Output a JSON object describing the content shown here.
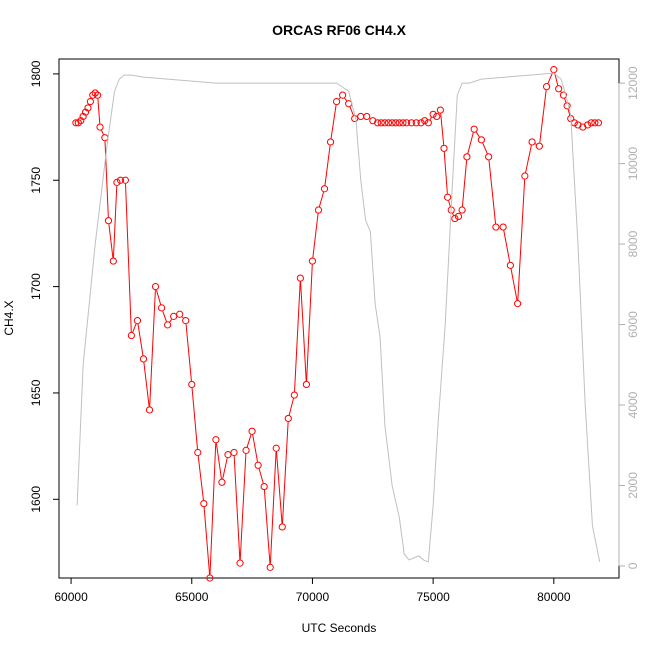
{
  "chart_data": {
    "type": "line",
    "title": "ORCAS RF06 CH4.X",
    "xlabel": "UTC Seconds",
    "ylabel": "CH4.X",
    "y2label": "",
    "xlim": [
      59500,
      82700
    ],
    "ylim": [
      1563,
      1807
    ],
    "y2lim": [
      -300,
      12600
    ],
    "x_ticks": [
      60000,
      65000,
      70000,
      75000,
      80000
    ],
    "y_ticks": [
      1600,
      1650,
      1700,
      1750,
      1800
    ],
    "y2_ticks": [
      0,
      2000,
      4000,
      6000,
      8000,
      10000,
      12000
    ],
    "colors": {
      "ch4": "#ff0000",
      "altitude": "#c0c0c0"
    },
    "series": [
      {
        "role": "ch4",
        "axis": "left",
        "color": "#ff0000",
        "marker": "open-circle",
        "x": [
          60200,
          60300,
          60400,
          60500,
          60600,
          60700,
          60800,
          60900,
          61000,
          61100,
          61200,
          61400,
          61550,
          61750,
          61900,
          62050,
          62250,
          62500,
          62750,
          63000,
          63250,
          63500,
          63750,
          64000,
          64250,
          64500,
          64750,
          65000,
          65250,
          65500,
          65750,
          66000,
          66250,
          66500,
          66750,
          67000,
          67250,
          67500,
          67750,
          68000,
          68250,
          68500,
          68750,
          69000,
          69250,
          69500,
          69750,
          70000,
          70250,
          70500,
          70750,
          71000,
          71250,
          71500,
          71750,
          72000,
          72250,
          72500,
          72700,
          72850,
          73000,
          73150,
          73300,
          73450,
          73600,
          73750,
          73900,
          74100,
          74300,
          74500,
          74650,
          74800,
          75000,
          75150,
          75300,
          75450,
          75600,
          75750,
          75900,
          76050,
          76200,
          76400,
          76700,
          77000,
          77300,
          77600,
          77900,
          78200,
          78500,
          78800,
          79100,
          79400,
          79700,
          80000,
          80200,
          80400,
          80550,
          80700,
          80850,
          81000,
          81200,
          81400,
          81550,
          81700,
          81850
        ],
        "y": [
          1777,
          1777,
          1778,
          1780,
          1782,
          1784,
          1787,
          1790,
          1791,
          1790,
          1775,
          1770,
          1731,
          1712,
          1749,
          1750,
          1750,
          1677,
          1684,
          1666,
          1642,
          1700,
          1690,
          1682,
          1686,
          1687,
          1684,
          1654,
          1622,
          1598,
          1563,
          1628,
          1608,
          1621,
          1622,
          1570,
          1623,
          1632,
          1616,
          1606,
          1568,
          1624,
          1587,
          1638,
          1649,
          1704,
          1654,
          1712,
          1736,
          1746,
          1768,
          1787,
          1790,
          1786,
          1779,
          1780,
          1780,
          1778,
          1777,
          1777,
          1777,
          1777,
          1777,
          1777,
          1777,
          1777,
          1777,
          1777,
          1777,
          1777,
          1778,
          1777,
          1781,
          1780,
          1783,
          1765,
          1742,
          1736,
          1732,
          1733,
          1736,
          1761,
          1774,
          1769,
          1761,
          1728,
          1728,
          1710,
          1692,
          1752,
          1768,
          1766,
          1794,
          1802,
          1793,
          1790,
          1785,
          1779,
          1777,
          1776,
          1775,
          1776,
          1777,
          1777,
          1777
        ]
      },
      {
        "role": "altitude",
        "axis": "right",
        "color": "#c0c0c0",
        "marker": "none",
        "x": [
          60250,
          60500,
          61000,
          61500,
          61800,
          62000,
          62200,
          62500,
          63000,
          64000,
          65000,
          66000,
          67000,
          68000,
          69000,
          70000,
          71000,
          71500,
          71800,
          72000,
          72200,
          72400,
          72600,
          72800,
          73000,
          73300,
          73600,
          73800,
          74000,
          74200,
          74400,
          74600,
          74800,
          75000,
          75200,
          75500,
          75800,
          76000,
          76200,
          76500,
          77000,
          78000,
          79000,
          80000,
          80300,
          80500,
          80700,
          81000,
          81300,
          81600,
          81900
        ],
        "y": [
          1500,
          5000,
          8000,
          10500,
          11800,
          12100,
          12200,
          12200,
          12150,
          12100,
          12050,
          12000,
          12000,
          12000,
          12000,
          12000,
          12000,
          11800,
          11100,
          9600,
          8600,
          8300,
          6500,
          5700,
          3500,
          2000,
          1200,
          300,
          150,
          200,
          250,
          150,
          100,
          1500,
          3500,
          6000,
          9500,
          11700,
          12000,
          12000,
          12100,
          12150,
          12200,
          12250,
          12100,
          11700,
          11200,
          8000,
          4000,
          1000,
          100
        ]
      }
    ]
  }
}
